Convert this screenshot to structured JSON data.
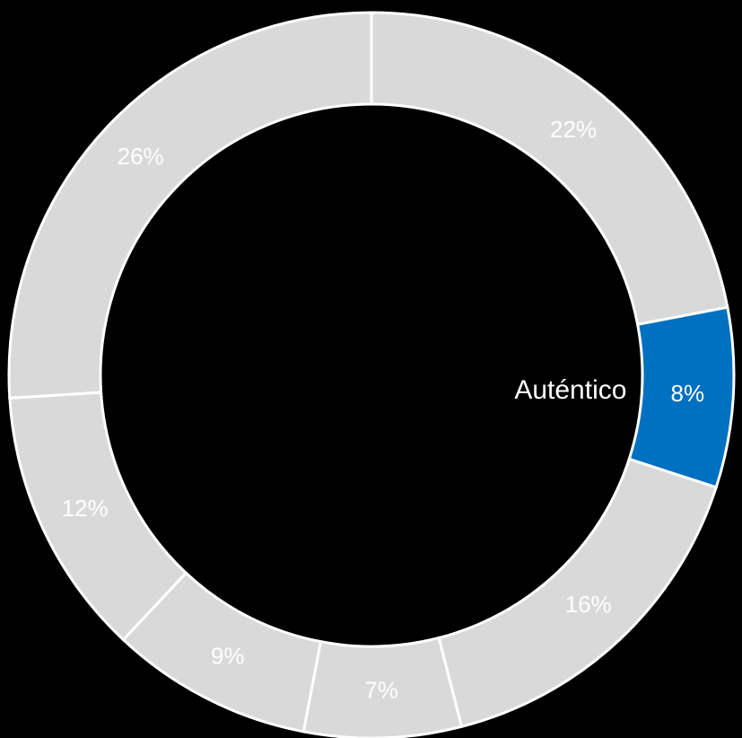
{
  "chart_data": {
    "type": "donut",
    "categories": [
      null,
      "Auténtico",
      null,
      null,
      null,
      null,
      null
    ],
    "values": [
      22,
      8,
      16,
      7,
      9,
      12,
      26
    ],
    "value_labels": [
      "22%",
      "8%",
      "16%",
      "7%",
      "9%",
      "12%",
      "26%"
    ],
    "colors": [
      "#d9d9d9",
      "#0070c0",
      "#d9d9d9",
      "#d9d9d9",
      "#d9d9d9",
      "#d9d9d9",
      "#d9d9d9"
    ]
  }
}
